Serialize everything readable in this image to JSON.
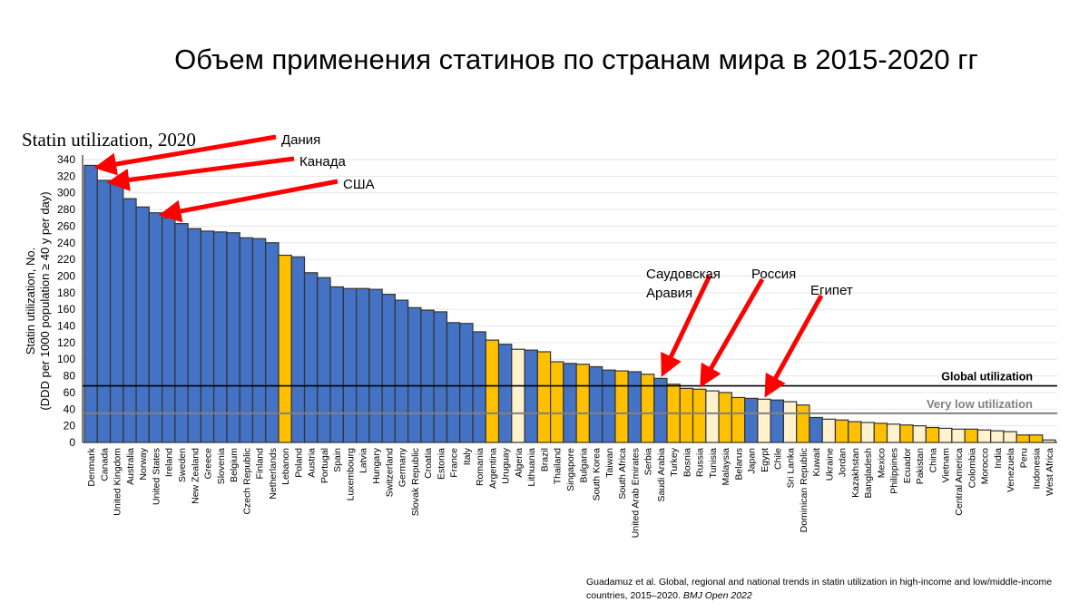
{
  "title": "Объем применения статинов по странам мира в 2015-2020 гг",
  "citation": {
    "text": "Guadamuz et al. Global, regional and national trends in statin utilization in high-income and low/middle-income countries, 2015–2020. ",
    "journal": "BMJ Open 2022"
  },
  "colors": {
    "blue": "#4472C4",
    "yellow": "#FFC000",
    "cream": "#FFF2CC",
    "arrow": "#FF0000"
  },
  "chart_data": {
    "type": "bar",
    "title": "Statin utilization, 2020",
    "ylabel": "Statin utilization, No.",
    "ylabel2": "(DDD per 1000 population ≥ 40 y per day)",
    "ylim": [
      0,
      340
    ],
    "yticks": [
      0,
      20,
      40,
      60,
      80,
      100,
      120,
      140,
      160,
      180,
      200,
      220,
      240,
      260,
      280,
      300,
      320,
      340
    ],
    "grid": true,
    "reference_lines": [
      {
        "label": "Global utilization",
        "value": 68,
        "color": "#000000"
      },
      {
        "label": "Very low utilization",
        "value": 35,
        "color": "#808080"
      }
    ],
    "categories": [
      "Denmark",
      "Canada",
      "United Kingdom",
      "Australia",
      "Norway",
      "United States",
      "Ireland",
      "Sweden",
      "New Zealand",
      "Greece",
      "Slovenia",
      "Belgium",
      "Czech Republic",
      "Finland",
      "Netherlands",
      "Lebanon",
      "Poland",
      "Austria",
      "Portugal",
      "Spain",
      "Luxembourg",
      "Latvia",
      "Hungary",
      "Switzerland",
      "Germany",
      "Slovak Republic",
      "Croatia",
      "Estonia",
      "France",
      "Italy",
      "Romania",
      "Argentina",
      "Uruguay",
      "Algeria",
      "Lithuania",
      "Brazil",
      "Thailand",
      "Singapore",
      "Bulgaria",
      "South Korea",
      "Taiwan",
      "South Africa",
      "United Arab Emirates",
      "Serbia",
      "Saudi Arabia",
      "Turkey",
      "Bosnia",
      "Russia",
      "Tunisia",
      "Malaysia",
      "Belarus",
      "Japan",
      "Egypt",
      "Chile",
      "Sri Lanka",
      "Dominican Republic",
      "Kuwait",
      "Ukraine",
      "Jordan",
      "Kazakhstan",
      "Bangladesh",
      "Mexico",
      "Philippines",
      "Ecuador",
      "Pakistan",
      "China",
      "Vietnam",
      "Central America",
      "Colombia",
      "Morocco",
      "India",
      "Venezuela",
      "Peru",
      "Indonesia",
      "West Africa"
    ],
    "values": [
      333,
      315,
      313,
      293,
      283,
      276,
      270,
      263,
      257,
      254,
      253,
      252,
      246,
      245,
      240,
      225,
      223,
      204,
      198,
      187,
      185,
      185,
      184,
      178,
      171,
      162,
      159,
      157,
      144,
      143,
      133,
      123,
      118,
      112,
      111,
      109,
      97,
      95,
      94,
      91,
      87,
      86,
      85,
      82,
      77,
      70,
      65,
      64,
      62,
      60,
      54,
      53,
      52,
      51,
      49,
      45,
      30,
      28,
      27,
      25,
      24,
      23,
      22,
      21,
      20,
      18,
      17,
      16,
      16,
      15,
      14,
      13,
      9,
      9,
      3
    ],
    "bar_colors": [
      "blue",
      "blue",
      "blue",
      "blue",
      "blue",
      "blue",
      "blue",
      "blue",
      "blue",
      "blue",
      "blue",
      "blue",
      "blue",
      "blue",
      "blue",
      "yellow",
      "blue",
      "blue",
      "blue",
      "blue",
      "blue",
      "blue",
      "blue",
      "blue",
      "blue",
      "blue",
      "blue",
      "blue",
      "blue",
      "blue",
      "blue",
      "yellow",
      "blue",
      "cream",
      "blue",
      "yellow",
      "yellow",
      "blue",
      "yellow",
      "blue",
      "blue",
      "yellow",
      "blue",
      "yellow",
      "blue",
      "yellow",
      "yellow",
      "yellow",
      "cream",
      "yellow",
      "yellow",
      "blue",
      "cream",
      "blue",
      "cream",
      "yellow",
      "blue",
      "cream",
      "yellow",
      "yellow",
      "cream",
      "yellow",
      "cream",
      "yellow",
      "cream",
      "yellow",
      "cream",
      "cream",
      "yellow",
      "cream",
      "cream",
      "cream",
      "yellow",
      "yellow",
      "cream"
    ],
    "annotations": [
      {
        "label": "Дания",
        "target": "Denmark"
      },
      {
        "label": "Канада",
        "target": "Canada"
      },
      {
        "label": "США",
        "target": "United States"
      },
      {
        "label": "Саудовская",
        "label2": "Аравия",
        "target": "Saudi Arabia"
      },
      {
        "label": "Россия",
        "target": "Russia"
      },
      {
        "label": "Египет",
        "target": "Egypt"
      }
    ]
  }
}
